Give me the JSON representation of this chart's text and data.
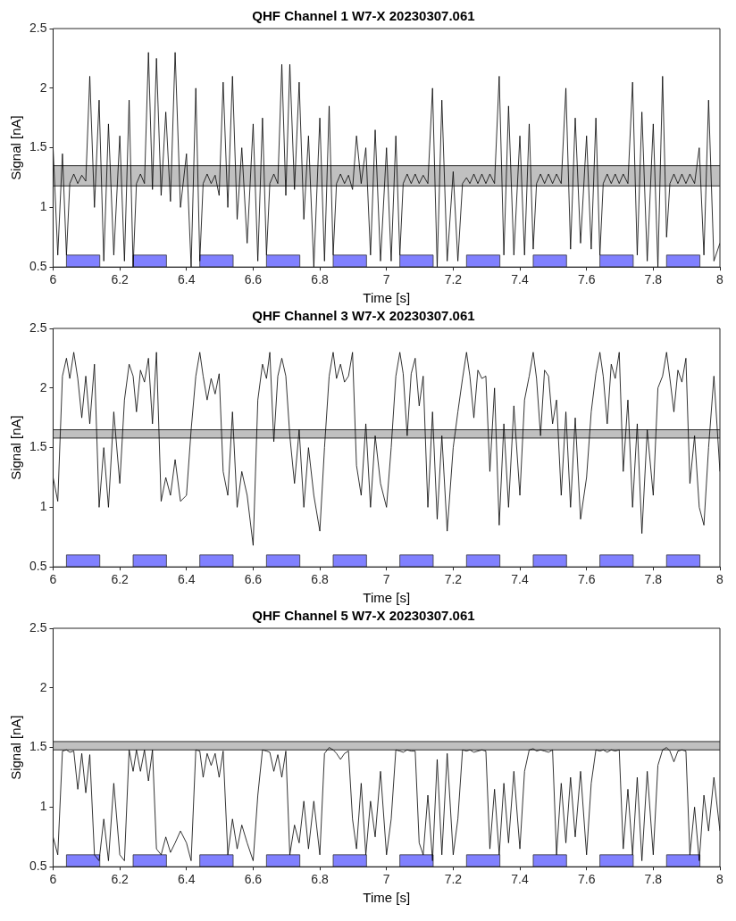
{
  "chart_data": [
    {
      "type": "line",
      "title": "QHF Channel 1 W7-X 20230307.061",
      "xlabel": "Time [s]",
      "ylabel": "Signal [nA]",
      "xlim": [
        6,
        8
      ],
      "xticks": [
        6,
        6.2,
        6.4,
        6.6,
        6.8,
        7,
        7.2,
        7.4,
        7.6,
        7.8,
        8
      ],
      "ylim": [
        0.5,
        2.5
      ],
      "yticks": [
        0.5,
        1,
        1.5,
        2,
        2.5
      ],
      "grid": false,
      "legend": false,
      "marker": "none",
      "x": [
        6,
        6.014,
        6.028,
        6.04,
        6.05,
        6.062,
        6.074,
        6.086,
        6.098,
        6.11,
        6.124,
        6.138,
        6.152,
        6.166,
        6.182,
        6.2,
        6.214,
        6.228,
        6.24,
        6.25,
        6.262,
        6.274,
        6.286,
        6.298,
        6.31,
        6.324,
        6.338,
        6.352,
        6.366,
        6.382,
        6.4,
        6.414,
        6.428,
        6.44,
        6.45,
        6.462,
        6.474,
        6.486,
        6.498,
        6.51,
        6.524,
        6.538,
        6.552,
        6.566,
        6.582,
        6.6,
        6.614,
        6.628,
        6.64,
        6.65,
        6.662,
        6.674,
        6.686,
        6.698,
        6.71,
        6.724,
        6.738,
        6.752,
        6.766,
        6.782,
        6.8,
        6.814,
        6.828,
        6.84,
        6.85,
        6.862,
        6.874,
        6.886,
        6.898,
        6.91,
        6.924,
        6.938,
        6.952,
        6.966,
        6.982,
        7,
        7.014,
        7.028,
        7.04,
        7.05,
        7.062,
        7.074,
        7.086,
        7.098,
        7.11,
        7.124,
        7.138,
        7.152,
        7.166,
        7.182,
        7.2,
        7.214,
        7.228,
        7.24,
        7.25,
        7.262,
        7.274,
        7.286,
        7.298,
        7.31,
        7.324,
        7.338,
        7.352,
        7.366,
        7.382,
        7.4,
        7.414,
        7.428,
        7.44,
        7.45,
        7.462,
        7.474,
        7.486,
        7.498,
        7.51,
        7.524,
        7.538,
        7.552,
        7.566,
        7.582,
        7.6,
        7.614,
        7.628,
        7.64,
        7.65,
        7.662,
        7.674,
        7.686,
        7.698,
        7.71,
        7.724,
        7.738,
        7.752,
        7.766,
        7.782,
        7.8,
        7.814,
        7.828,
        7.84,
        7.85,
        7.862,
        7.874,
        7.886,
        7.898,
        7.91,
        7.924,
        7.938,
        7.952,
        7.966,
        7.982,
        8
      ],
      "series": [
        {
          "color": "#000000",
          "values": [
            1.5,
            0.6,
            1.45,
            0.6,
            1.2,
            1.28,
            1.2,
            1.27,
            1.22,
            2.1,
            1.0,
            1.9,
            0.55,
            1.7,
            0.6,
            1.6,
            0.55,
            1.9,
            0.5,
            1.2,
            1.28,
            1.2,
            2.3,
            1.15,
            2.25,
            1.1,
            1.8,
            1.05,
            2.3,
            1.0,
            1.45,
            0.5,
            2.0,
            0.55,
            1.2,
            1.28,
            1.2,
            1.27,
            1.1,
            2.05,
            1.0,
            2.1,
            0.9,
            1.5,
            0.7,
            1.7,
            0.55,
            1.75,
            0.6,
            1.2,
            1.28,
            1.2,
            2.2,
            1.1,
            2.2,
            1.15,
            2.05,
            0.9,
            1.6,
            0.5,
            1.75,
            0.55,
            1.85,
            0.6,
            1.2,
            1.28,
            1.2,
            1.27,
            1.15,
            1.6,
            1.2,
            1.5,
            0.6,
            1.65,
            0.55,
            1.5,
            0.55,
            1.6,
            0.6,
            1.2,
            1.28,
            1.2,
            1.28,
            1.2,
            1.27,
            1.2,
            2.0,
            0.5,
            1.9,
            0.55,
            1.3,
            0.55,
            1.2,
            1.25,
            1.2,
            1.28,
            1.2,
            1.28,
            1.2,
            1.28,
            1.2,
            2.1,
            0.6,
            1.85,
            0.6,
            1.6,
            0.6,
            1.7,
            0.65,
            1.2,
            1.28,
            1.2,
            1.28,
            1.2,
            1.28,
            1.2,
            2.0,
            0.65,
            1.75,
            0.7,
            1.6,
            0.65,
            1.75,
            0.6,
            1.2,
            1.28,
            1.2,
            1.28,
            1.2,
            1.28,
            1.2,
            2.05,
            0.6,
            1.8,
            0.55,
            1.7,
            0.5,
            2.1,
            0.75,
            1.2,
            1.28,
            1.2,
            1.28,
            1.2,
            1.28,
            1.2,
            1.5,
            0.6,
            1.9,
            0.55,
            0.7
          ]
        }
      ],
      "ref_lines": [
        {
          "axis": "y",
          "value": 1.18,
          "color": "#000000"
        },
        {
          "axis": "y",
          "value": 1.35,
          "color": "#000000"
        }
      ],
      "bands": [
        {
          "axis": "y",
          "from": 1.18,
          "to": 1.35,
          "color": "#c0c0c0"
        },
        {
          "axis": "x",
          "from": 6.04,
          "to": 6.14,
          "color": "#8080ff"
        },
        {
          "axis": "x",
          "from": 6.24,
          "to": 6.34,
          "color": "#8080ff"
        },
        {
          "axis": "x",
          "from": 6.44,
          "to": 6.54,
          "color": "#8080ff"
        },
        {
          "axis": "x",
          "from": 6.64,
          "to": 6.74,
          "color": "#8080ff"
        },
        {
          "axis": "x",
          "from": 6.84,
          "to": 6.94,
          "color": "#8080ff"
        },
        {
          "axis": "x",
          "from": 7.04,
          "to": 7.14,
          "color": "#8080ff"
        },
        {
          "axis": "x",
          "from": 7.24,
          "to": 7.34,
          "color": "#8080ff"
        },
        {
          "axis": "x",
          "from": 7.44,
          "to": 7.54,
          "color": "#8080ff"
        },
        {
          "axis": "x",
          "from": 7.64,
          "to": 7.74,
          "color": "#8080ff"
        },
        {
          "axis": "x",
          "from": 7.84,
          "to": 7.94,
          "color": "#8080ff"
        }
      ]
    },
    {
      "type": "line",
      "title": "QHF Channel 3 W7-X 20230307.061",
      "xlabel": "Time [s]",
      "ylabel": "Signal [nA]",
      "xlim": [
        6,
        8
      ],
      "xticks": [
        6,
        6.2,
        6.4,
        6.6,
        6.8,
        7,
        7.2,
        7.4,
        7.6,
        7.8,
        8
      ],
      "ylim": [
        0.5,
        2.5
      ],
      "yticks": [
        0.5,
        1,
        1.5,
        2,
        2.5
      ],
      "grid": false,
      "legend": false,
      "marker": "none",
      "x": [
        6,
        6.014,
        6.028,
        6.04,
        6.05,
        6.062,
        6.074,
        6.086,
        6.098,
        6.11,
        6.124,
        6.138,
        6.152,
        6.166,
        6.182,
        6.2,
        6.214,
        6.228,
        6.24,
        6.25,
        6.262,
        6.274,
        6.286,
        6.298,
        6.31,
        6.324,
        6.338,
        6.352,
        6.366,
        6.382,
        6.4,
        6.414,
        6.428,
        6.44,
        6.45,
        6.462,
        6.474,
        6.486,
        6.498,
        6.51,
        6.524,
        6.538,
        6.552,
        6.566,
        6.582,
        6.6,
        6.614,
        6.628,
        6.64,
        6.65,
        6.662,
        6.674,
        6.686,
        6.698,
        6.71,
        6.724,
        6.738,
        6.752,
        6.766,
        6.782,
        6.8,
        6.814,
        6.828,
        6.84,
        6.85,
        6.862,
        6.874,
        6.886,
        6.898,
        6.91,
        6.924,
        6.938,
        6.952,
        6.966,
        6.982,
        7,
        7.014,
        7.028,
        7.04,
        7.05,
        7.062,
        7.074,
        7.086,
        7.098,
        7.11,
        7.124,
        7.138,
        7.152,
        7.166,
        7.182,
        7.2,
        7.214,
        7.228,
        7.24,
        7.25,
        7.262,
        7.274,
        7.286,
        7.298,
        7.31,
        7.324,
        7.338,
        7.352,
        7.366,
        7.382,
        7.4,
        7.414,
        7.428,
        7.44,
        7.45,
        7.462,
        7.474,
        7.486,
        7.498,
        7.51,
        7.524,
        7.538,
        7.552,
        7.566,
        7.582,
        7.6,
        7.614,
        7.628,
        7.64,
        7.65,
        7.662,
        7.674,
        7.686,
        7.698,
        7.71,
        7.724,
        7.738,
        7.752,
        7.766,
        7.782,
        7.8,
        7.814,
        7.828,
        7.84,
        7.85,
        7.862,
        7.874,
        7.886,
        7.898,
        7.91,
        7.924,
        7.938,
        7.952,
        7.966,
        7.982,
        8
      ],
      "series": [
        {
          "color": "#000000",
          "values": [
            1.25,
            1.05,
            2.1,
            2.25,
            2.08,
            2.3,
            2.08,
            1.75,
            2.1,
            1.7,
            2.2,
            1.0,
            1.5,
            1.0,
            1.8,
            1.2,
            1.9,
            2.2,
            2.1,
            1.8,
            2.15,
            2.05,
            2.25,
            1.7,
            2.3,
            1.05,
            1.25,
            1.1,
            1.4,
            1.05,
            1.1,
            1.65,
            2.1,
            2.3,
            2.1,
            1.9,
            2.08,
            1.95,
            2.12,
            1.3,
            1.1,
            1.8,
            1.0,
            1.3,
            1.1,
            0.68,
            1.9,
            2.2,
            2.08,
            2.3,
            1.55,
            2.1,
            2.25,
            2.1,
            1.6,
            1.2,
            1.65,
            1.0,
            1.5,
            1.1,
            0.8,
            1.5,
            2.1,
            2.3,
            2.08,
            2.2,
            2.05,
            2.1,
            2.3,
            1.35,
            1.1,
            1.7,
            1.0,
            1.6,
            1.2,
            1.0,
            1.5,
            2.1,
            2.3,
            2.12,
            1.6,
            2.12,
            2.25,
            1.85,
            2.1,
            1.0,
            1.8,
            0.9,
            1.6,
            0.8,
            1.5,
            1.8,
            2.08,
            2.3,
            2.1,
            1.75,
            2.15,
            2.08,
            2.1,
            1.3,
            2.0,
            0.85,
            1.7,
            1.0,
            1.85,
            1.1,
            1.9,
            2.1,
            2.3,
            2.08,
            1.6,
            2.15,
            2.1,
            1.7,
            1.9,
            1.1,
            1.8,
            1.0,
            1.75,
            0.9,
            1.25,
            1.8,
            2.12,
            2.3,
            2.1,
            1.7,
            2.2,
            2.08,
            2.3,
            1.3,
            1.9,
            1.0,
            1.7,
            0.78,
            1.65,
            1.1,
            2.0,
            2.1,
            2.3,
            2.08,
            1.8,
            2.15,
            2.05,
            2.25,
            1.2,
            1.6,
            1.0,
            0.85,
            1.5,
            2.1,
            1.3
          ]
        }
      ],
      "ref_lines": [
        {
          "axis": "y",
          "value": 1.58,
          "color": "#000000"
        },
        {
          "axis": "y",
          "value": 1.65,
          "color": "#000000"
        }
      ],
      "bands": [
        {
          "axis": "y",
          "from": 1.58,
          "to": 1.65,
          "color": "#c0c0c0"
        },
        {
          "axis": "x",
          "from": 6.04,
          "to": 6.14,
          "color": "#8080ff"
        },
        {
          "axis": "x",
          "from": 6.24,
          "to": 6.34,
          "color": "#8080ff"
        },
        {
          "axis": "x",
          "from": 6.44,
          "to": 6.54,
          "color": "#8080ff"
        },
        {
          "axis": "x",
          "from": 6.64,
          "to": 6.74,
          "color": "#8080ff"
        },
        {
          "axis": "x",
          "from": 6.84,
          "to": 6.94,
          "color": "#8080ff"
        },
        {
          "axis": "x",
          "from": 7.04,
          "to": 7.14,
          "color": "#8080ff"
        },
        {
          "axis": "x",
          "from": 7.24,
          "to": 7.34,
          "color": "#8080ff"
        },
        {
          "axis": "x",
          "from": 7.44,
          "to": 7.54,
          "color": "#8080ff"
        },
        {
          "axis": "x",
          "from": 7.64,
          "to": 7.74,
          "color": "#8080ff"
        },
        {
          "axis": "x",
          "from": 7.84,
          "to": 7.94,
          "color": "#8080ff"
        }
      ]
    },
    {
      "type": "line",
      "title": "QHF Channel 5 W7-X 20230307.061",
      "xlabel": "Time [s]",
      "ylabel": "Signal [nA]",
      "xlim": [
        6,
        8
      ],
      "xticks": [
        6,
        6.2,
        6.4,
        6.6,
        6.8,
        7,
        7.2,
        7.4,
        7.6,
        7.8,
        8
      ],
      "ylim": [
        0.5,
        2.5
      ],
      "yticks": [
        0.5,
        1,
        1.5,
        2,
        2.5
      ],
      "grid": false,
      "legend": false,
      "marker": "none",
      "x": [
        6,
        6.014,
        6.028,
        6.04,
        6.05,
        6.062,
        6.074,
        6.086,
        6.098,
        6.11,
        6.124,
        6.138,
        6.152,
        6.166,
        6.182,
        6.2,
        6.214,
        6.228,
        6.24,
        6.25,
        6.262,
        6.274,
        6.286,
        6.298,
        6.31,
        6.324,
        6.338,
        6.352,
        6.366,
        6.382,
        6.4,
        6.414,
        6.428,
        6.44,
        6.45,
        6.462,
        6.474,
        6.486,
        6.498,
        6.51,
        6.524,
        6.538,
        6.552,
        6.566,
        6.582,
        6.6,
        6.614,
        6.628,
        6.64,
        6.65,
        6.662,
        6.674,
        6.686,
        6.698,
        6.71,
        6.724,
        6.738,
        6.752,
        6.766,
        6.782,
        6.8,
        6.814,
        6.828,
        6.84,
        6.85,
        6.862,
        6.874,
        6.886,
        6.898,
        6.91,
        6.924,
        6.938,
        6.952,
        6.966,
        6.982,
        7,
        7.014,
        7.028,
        7.04,
        7.05,
        7.062,
        7.074,
        7.086,
        7.098,
        7.11,
        7.124,
        7.138,
        7.152,
        7.166,
        7.182,
        7.2,
        7.214,
        7.228,
        7.24,
        7.25,
        7.262,
        7.274,
        7.286,
        7.298,
        7.31,
        7.324,
        7.338,
        7.352,
        7.366,
        7.382,
        7.4,
        7.414,
        7.428,
        7.44,
        7.45,
        7.462,
        7.474,
        7.486,
        7.498,
        7.51,
        7.524,
        7.538,
        7.552,
        7.566,
        7.582,
        7.6,
        7.614,
        7.628,
        7.64,
        7.65,
        7.662,
        7.674,
        7.686,
        7.698,
        7.71,
        7.724,
        7.738,
        7.752,
        7.766,
        7.782,
        7.8,
        7.814,
        7.828,
        7.84,
        7.85,
        7.862,
        7.874,
        7.886,
        7.898,
        7.91,
        7.924,
        7.938,
        7.952,
        7.966,
        7.982,
        8
      ],
      "series": [
        {
          "color": "#000000",
          "values": [
            0.75,
            0.6,
            1.47,
            1.48,
            1.46,
            1.47,
            1.15,
            1.45,
            1.12,
            1.44,
            0.6,
            0.55,
            0.9,
            0.55,
            1.2,
            0.6,
            0.55,
            1.48,
            1.3,
            1.48,
            1.3,
            1.48,
            1.22,
            1.48,
            0.65,
            0.6,
            0.75,
            0.62,
            0.7,
            0.8,
            0.7,
            0.55,
            1.48,
            1.47,
            1.25,
            1.45,
            1.35,
            1.45,
            1.25,
            1.47,
            0.6,
            0.9,
            0.65,
            0.85,
            0.7,
            0.55,
            1.1,
            1.48,
            1.47,
            1.46,
            1.3,
            1.44,
            1.25,
            1.47,
            0.6,
            0.85,
            0.7,
            1.05,
            0.65,
            1.05,
            0.6,
            1.45,
            1.5,
            1.48,
            1.45,
            1.4,
            1.45,
            1.47,
            0.9,
            0.65,
            1.2,
            0.6,
            1.05,
            0.75,
            1.3,
            0.6,
            0.9,
            1.48,
            1.47,
            1.46,
            1.48,
            1.47,
            1.47,
            0.7,
            0.6,
            1.1,
            0.55,
            1.4,
            0.6,
            1.45,
            0.6,
            0.9,
            1.48,
            1.47,
            1.48,
            1.46,
            1.47,
            1.48,
            1.47,
            0.65,
            1.15,
            0.6,
            1.2,
            0.7,
            1.3,
            0.65,
            1.3,
            1.48,
            1.49,
            1.47,
            1.48,
            1.47,
            1.46,
            1.48,
            0.6,
            1.2,
            0.7,
            1.25,
            0.75,
            1.3,
            0.6,
            1.2,
            1.48,
            1.47,
            1.48,
            1.46,
            1.48,
            1.47,
            1.48,
            0.65,
            1.15,
            0.6,
            1.25,
            0.55,
            1.3,
            0.6,
            1.35,
            1.48,
            1.5,
            1.47,
            1.38,
            1.47,
            1.48,
            1.47,
            0.6,
            1.0,
            0.55,
            1.1,
            0.8,
            1.25,
            0.8
          ]
        }
      ],
      "ref_lines": [
        {
          "axis": "y",
          "value": 1.48,
          "color": "#000000"
        },
        {
          "axis": "y",
          "value": 1.55,
          "color": "#000000"
        }
      ],
      "bands": [
        {
          "axis": "y",
          "from": 1.48,
          "to": 1.55,
          "color": "#c0c0c0"
        },
        {
          "axis": "x",
          "from": 6.04,
          "to": 6.14,
          "color": "#8080ff"
        },
        {
          "axis": "x",
          "from": 6.24,
          "to": 6.34,
          "color": "#8080ff"
        },
        {
          "axis": "x",
          "from": 6.44,
          "to": 6.54,
          "color": "#8080ff"
        },
        {
          "axis": "x",
          "from": 6.64,
          "to": 6.74,
          "color": "#8080ff"
        },
        {
          "axis": "x",
          "from": 6.84,
          "to": 6.94,
          "color": "#8080ff"
        },
        {
          "axis": "x",
          "from": 7.04,
          "to": 7.14,
          "color": "#8080ff"
        },
        {
          "axis": "x",
          "from": 7.24,
          "to": 7.34,
          "color": "#8080ff"
        },
        {
          "axis": "x",
          "from": 7.44,
          "to": 7.54,
          "color": "#8080ff"
        },
        {
          "axis": "x",
          "from": 7.64,
          "to": 7.74,
          "color": "#8080ff"
        },
        {
          "axis": "x",
          "from": 7.84,
          "to": 7.94,
          "color": "#8080ff"
        }
      ]
    }
  ]
}
